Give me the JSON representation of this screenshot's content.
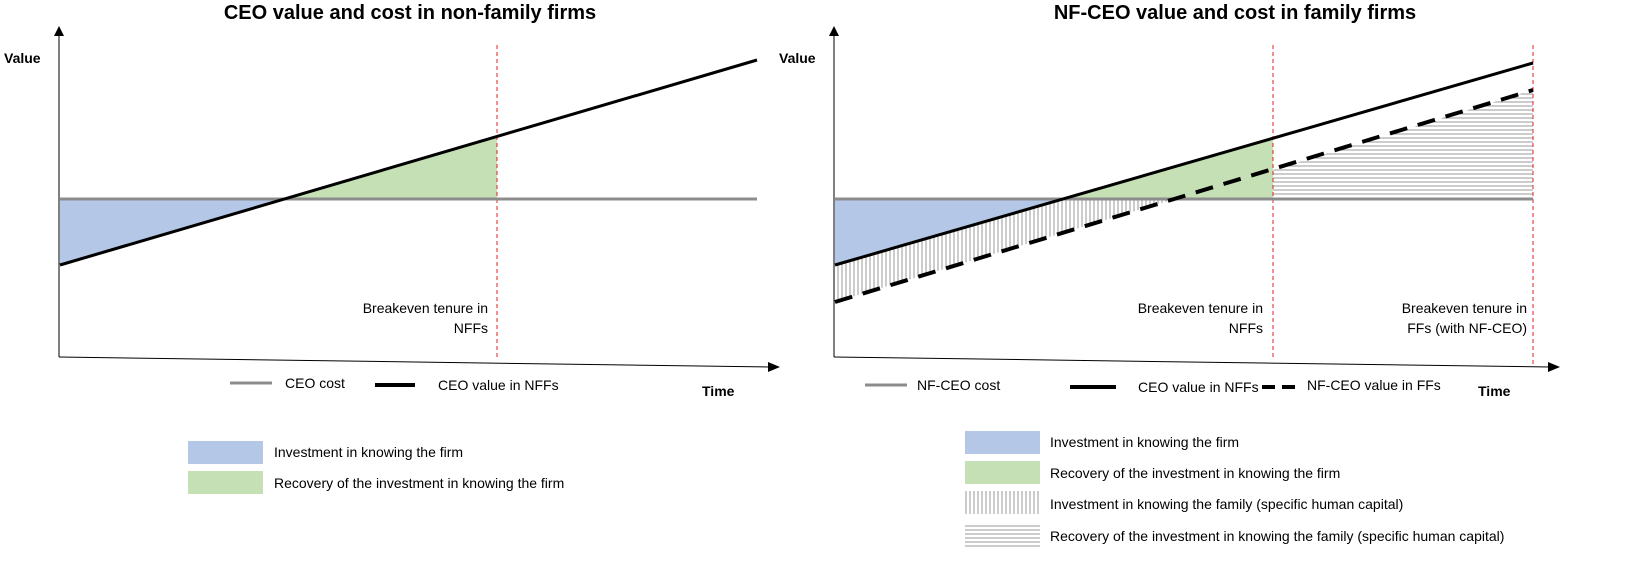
{
  "left": {
    "title": "CEO value and cost in non-family firms",
    "y_axis_label": "Value",
    "x_axis_label": "Time",
    "breakeven_label_line1": "Breakeven tenure in",
    "breakeven_label_line2": "NFFs",
    "line_legend": [
      {
        "label": "CEO cost",
        "style": "gray-solid"
      },
      {
        "label": "CEO value in NFFs",
        "style": "black-solid"
      }
    ],
    "area_legend": [
      {
        "label": "Investment in knowing the firm",
        "swatch": "blue"
      },
      {
        "label": "Recovery of the investment in knowing the firm",
        "swatch": "green"
      }
    ]
  },
  "right": {
    "title": "NF-CEO value and cost in family firms",
    "y_axis_label": "Value",
    "x_axis_label": "Time",
    "breakeven_nffs_line1": "Breakeven tenure in",
    "breakeven_nffs_line2": "NFFs",
    "breakeven_ffs_line1": "Breakeven tenure in",
    "breakeven_ffs_line2": "FFs (with NF-CEO)",
    "line_legend": [
      {
        "label": "NF-CEO cost",
        "style": "gray-solid"
      },
      {
        "label": "CEO value in NFFs",
        "style": "black-solid"
      },
      {
        "label": "NF-CEO value in FFs",
        "style": "black-dashed"
      }
    ],
    "area_legend": [
      {
        "label": "Investment in knowing the firm",
        "swatch": "blue"
      },
      {
        "label": "Recovery of the investment in knowing the firm",
        "swatch": "green"
      },
      {
        "label": "Investment in knowing the family (specific human capital)",
        "swatch": "vertical-hatch"
      },
      {
        "label": "Recovery of the investment in knowing the family (specific human capital)",
        "swatch": "horizontal-hatch"
      }
    ]
  },
  "colors": {
    "investment_fill": "#b4c7e7",
    "recovery_fill": "#c5e0b4",
    "cost_line": "#8c8c8c",
    "value_line": "#000000",
    "breakeven_line": "#e0241b",
    "hatch": "#9a9a9a"
  }
}
